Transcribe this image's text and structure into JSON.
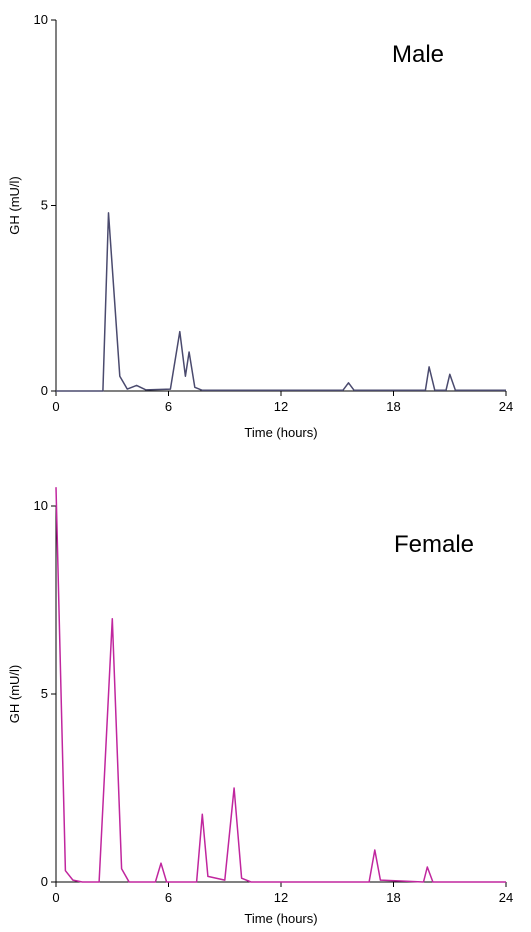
{
  "chart_data": [
    {
      "type": "line",
      "panel_label": "Male",
      "xlabel": "Time (hours)",
      "ylabel": "GH (mU/l)",
      "xlim": [
        0,
        24
      ],
      "ylim": [
        0,
        10
      ],
      "xticks": [
        0,
        6,
        12,
        18,
        24
      ],
      "yticks": [
        0,
        5,
        10
      ],
      "color": "#4a4a6e",
      "x": [
        0,
        2.5,
        2.8,
        3.4,
        3.8,
        4.3,
        4.8,
        6.1,
        6.6,
        6.9,
        7.1,
        7.4,
        7.8,
        15.3,
        15.6,
        15.9,
        19.7,
        19.9,
        20.2,
        20.8,
        21.0,
        21.3,
        24
      ],
      "y": [
        0,
        0,
        4.8,
        0.4,
        0.05,
        0.15,
        0.03,
        0.05,
        1.6,
        0.4,
        1.05,
        0.1,
        0.02,
        0.02,
        0.22,
        0.02,
        0.02,
        0.65,
        0.02,
        0.02,
        0.45,
        0.02,
        0.02
      ]
    },
    {
      "type": "line",
      "panel_label": "Female",
      "xlabel": "Time (hours)",
      "ylabel": "GH (mU/l)",
      "xlim": [
        0,
        24
      ],
      "ylim": [
        0,
        10
      ],
      "xticks": [
        0,
        6,
        12,
        18,
        24
      ],
      "yticks": [
        0,
        5,
        10
      ],
      "color": "#c0269e",
      "x": [
        0,
        0.5,
        0.9,
        1.4,
        2.3,
        3.0,
        3.5,
        3.9,
        5.3,
        5.6,
        5.9,
        7.5,
        7.8,
        8.1,
        9.0,
        9.5,
        9.9,
        10.4,
        16.7,
        17.0,
        17.3,
        19.6,
        19.8,
        20.1,
        24
      ],
      "y": [
        10.5,
        0.3,
        0.05,
        0.0,
        0.0,
        7.0,
        0.35,
        0.0,
        0.0,
        0.5,
        0.0,
        0.0,
        1.8,
        0.15,
        0.05,
        2.5,
        0.1,
        0.0,
        0.0,
        0.85,
        0.05,
        0.0,
        0.4,
        0.0,
        0.0
      ]
    }
  ]
}
